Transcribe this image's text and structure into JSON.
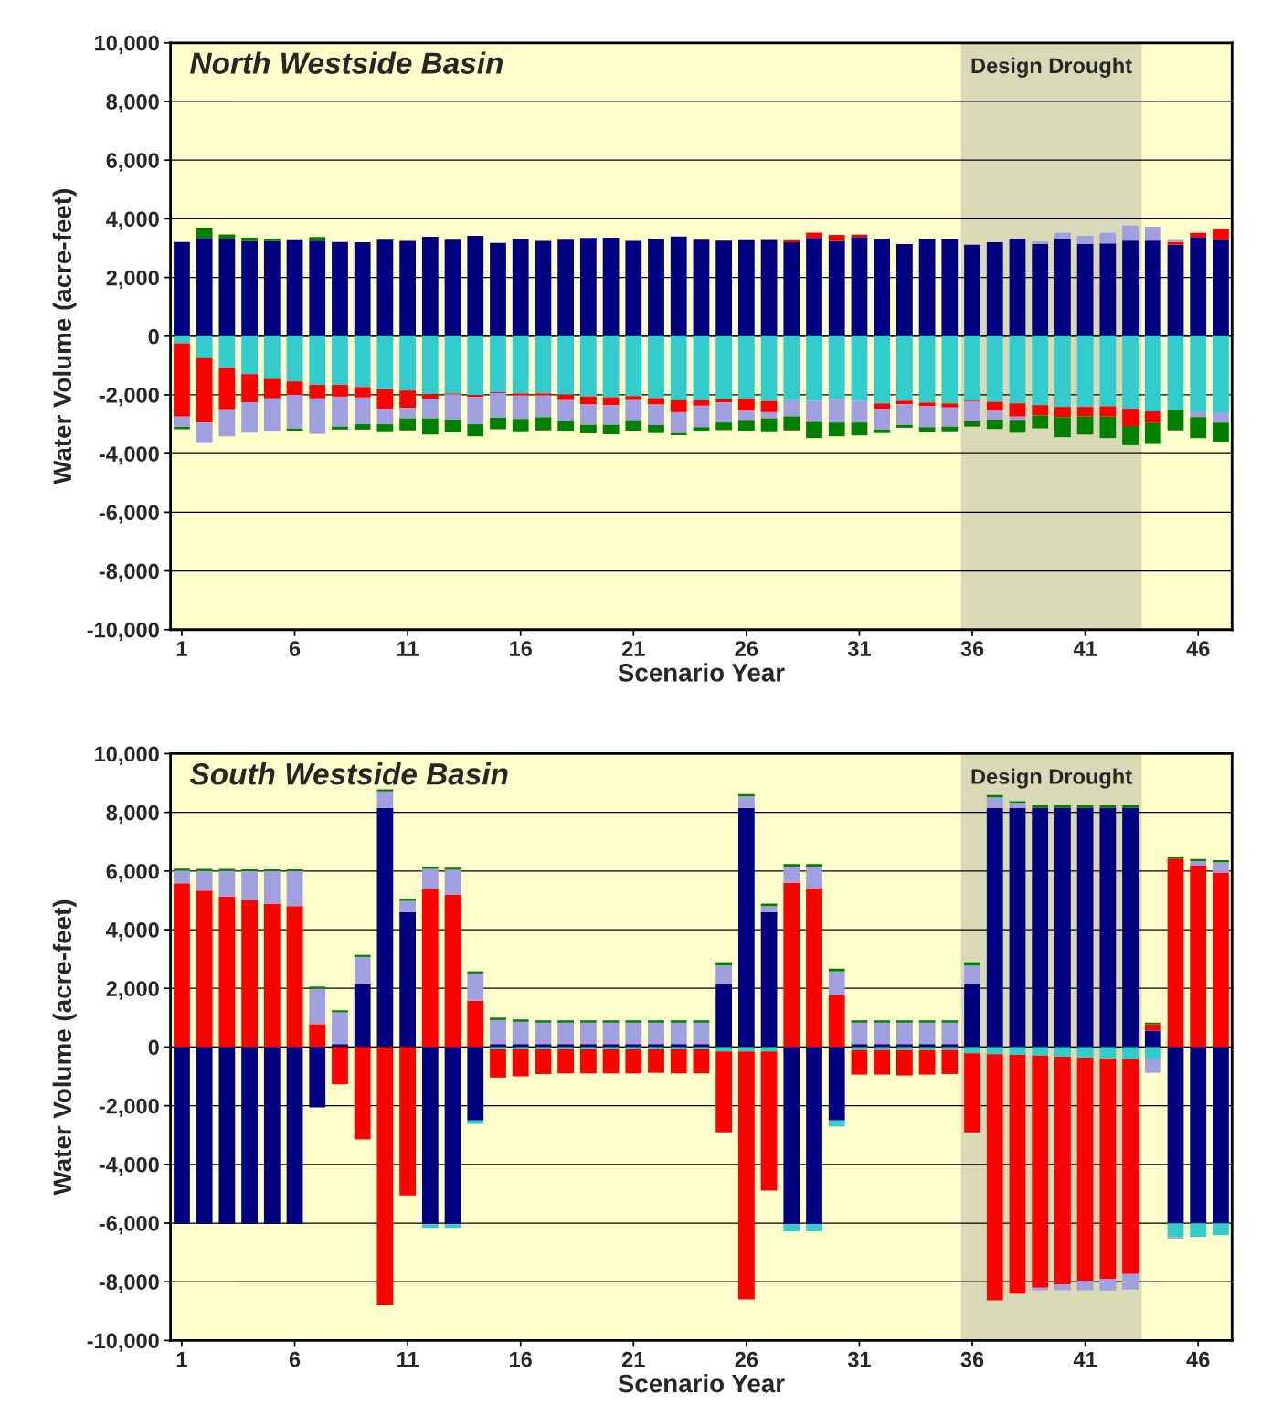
{
  "chart_data": [
    {
      "type": "bar",
      "title": "North Westside Basin",
      "xlabel": "Scenario Year",
      "ylabel": "Water Volume (acre-feet)",
      "stacked": true,
      "grid": "y",
      "x": [
        1,
        2,
        3,
        4,
        5,
        6,
        7,
        8,
        9,
        10,
        11,
        12,
        13,
        14,
        15,
        16,
        17,
        18,
        19,
        20,
        21,
        22,
        23,
        24,
        25,
        26,
        27,
        28,
        29,
        30,
        31,
        32,
        33,
        34,
        35,
        36,
        37,
        38,
        39,
        40,
        41,
        42,
        43,
        44,
        45,
        46,
        47
      ],
      "xlim": [
        0.5,
        47.5
      ],
      "xticks": [
        1,
        6,
        11,
        16,
        21,
        26,
        31,
        36,
        41,
        46
      ],
      "ylim": [
        -10000,
        10000
      ],
      "yticks": [
        {
          "value": -10000,
          "label": "-10,000"
        },
        {
          "value": -8000,
          "label": "-8,000"
        },
        {
          "value": -6000,
          "label": "-6,000"
        },
        {
          "value": -4000,
          "label": "-4,000"
        },
        {
          "value": -2000,
          "label": "-2,000"
        },
        0,
        {
          "value": 2000,
          "label": "2,000"
        },
        {
          "value": 4000,
          "label": "4,000"
        },
        {
          "value": 6000,
          "label": "6,000"
        },
        {
          "value": 8000,
          "label": "8,000"
        },
        {
          "value": 10000,
          "label": "10,000"
        }
      ],
      "bands": [
        {
          "axis": "x",
          "from": 35.5,
          "to": 43.5,
          "label": "Design Drought",
          "color": "#d2d2b0"
        }
      ],
      "series": [
        {
          "color": "#000080",
          "values": [
            3210,
            3350,
            3320,
            3240,
            3240,
            3270,
            3260,
            3210,
            3200,
            3290,
            3250,
            3390,
            3290,
            3420,
            3180,
            3310,
            3250,
            3290,
            3350,
            3360,
            3250,
            3320,
            3400,
            3290,
            3260,
            3270,
            3280,
            3200,
            3350,
            3240,
            3380,
            3330,
            3140,
            3320,
            3320,
            3120,
            3200,
            3330,
            3150,
            3320,
            3140,
            3160,
            3260,
            3260,
            3120,
            3380,
            3290
          ]
        },
        {
          "color": "#33cccc",
          "values": [
            -240,
            -740,
            -1090,
            -1290,
            -1450,
            -1540,
            -1660,
            -1660,
            -1730,
            -1810,
            -1850,
            -1980,
            -1950,
            -2000,
            -1910,
            -1950,
            -1950,
            -1990,
            -2050,
            -2080,
            -2040,
            -2110,
            -2180,
            -2180,
            -2150,
            -2140,
            -2210,
            -2180,
            -2200,
            -2140,
            -2200,
            -2290,
            -2200,
            -2260,
            -2290,
            -2200,
            -2240,
            -2290,
            -2350,
            -2410,
            -2410,
            -2390,
            -2470,
            -2560,
            -2510,
            -2560,
            -2590
          ]
        },
        {
          "color": "#ff0000",
          "values": [
            0,
            0,
            0,
            0,
            0,
            0,
            0,
            0,
            0,
            0,
            0,
            0,
            0,
            0,
            0,
            0,
            0,
            0,
            0,
            0,
            0,
            0,
            0,
            0,
            0,
            0,
            0,
            70,
            180,
            210,
            80,
            0,
            0,
            0,
            0,
            0,
            0,
            0,
            0,
            0,
            0,
            0,
            0,
            0,
            90,
            140,
            380
          ]
        },
        {
          "color": "#ff0000",
          "values": [
            -2500,
            -2200,
            -1400,
            -960,
            -670,
            -460,
            -460,
            -400,
            -360,
            -660,
            -600,
            -150,
            -30,
            -70,
            -30,
            -70,
            -70,
            -190,
            -280,
            -270,
            -140,
            -220,
            -410,
            -190,
            -110,
            -390,
            -380,
            0,
            0,
            0,
            0,
            -180,
            -120,
            -130,
            -140,
            -30,
            -290,
            -450,
            -350,
            -350,
            -320,
            -350,
            -590,
            -400,
            0,
            0,
            0
          ]
        },
        {
          "color": "#a0a0e0",
          "values": [
            0,
            0,
            0,
            0,
            0,
            0,
            0,
            0,
            0,
            0,
            0,
            0,
            0,
            0,
            0,
            0,
            0,
            0,
            0,
            0,
            0,
            0,
            0,
            0,
            0,
            0,
            0,
            0,
            0,
            0,
            0,
            0,
            0,
            0,
            0,
            0,
            0,
            0,
            80,
            200,
            280,
            360,
            510,
            470,
            70,
            0,
            0
          ]
        },
        {
          "color": "#a0a0e0",
          "values": [
            -350,
            -700,
            -920,
            -1040,
            -1130,
            -1150,
            -1210,
            -1020,
            -910,
            -530,
            -350,
            -670,
            -860,
            -930,
            -840,
            -800,
            -740,
            -720,
            -690,
            -670,
            -710,
            -700,
            -710,
            -730,
            -680,
            -350,
            -210,
            -550,
            -720,
            -800,
            -740,
            -710,
            -710,
            -710,
            -650,
            -670,
            -320,
            -140,
            0,
            0,
            0,
            0,
            0,
            0,
            0,
            -200,
            -350
          ]
        },
        {
          "color": "#008000",
          "values": [
            0,
            350,
            150,
            120,
            80,
            0,
            120,
            0,
            0,
            0,
            0,
            0,
            0,
            0,
            0,
            0,
            0,
            0,
            0,
            0,
            0,
            0,
            0,
            0,
            0,
            0,
            0,
            0,
            0,
            0,
            0,
            0,
            0,
            0,
            0,
            0,
            0,
            0,
            0,
            0,
            0,
            0,
            0,
            0,
            0,
            0,
            0
          ]
        },
        {
          "color": "#008000",
          "values": [
            -80,
            0,
            0,
            0,
            0,
            -80,
            0,
            -100,
            -180,
            -270,
            -410,
            -550,
            -440,
            -410,
            -390,
            -450,
            -450,
            -350,
            -290,
            -320,
            -330,
            -270,
            -70,
            -150,
            -260,
            -350,
            -470,
            -480,
            -550,
            -470,
            -440,
            -120,
            -90,
            -180,
            -190,
            -180,
            -310,
            -410,
            -440,
            -680,
            -620,
            -730,
            -650,
            -710,
            -700,
            -710,
            -670
          ]
        }
      ]
    },
    {
      "type": "bar",
      "title": "South Westside Basin",
      "xlabel": "Scenario Year",
      "ylabel": "Water Volume (acre-feet)",
      "stacked": true,
      "grid": "y",
      "x": [
        1,
        2,
        3,
        4,
        5,
        6,
        7,
        8,
        9,
        10,
        11,
        12,
        13,
        14,
        15,
        16,
        17,
        18,
        19,
        20,
        21,
        22,
        23,
        24,
        25,
        26,
        27,
        28,
        29,
        30,
        31,
        32,
        33,
        34,
        35,
        36,
        37,
        38,
        39,
        40,
        41,
        42,
        43,
        44,
        45,
        46,
        47
      ],
      "xlim": [
        0.5,
        47.5
      ],
      "xticks": [
        1,
        6,
        11,
        16,
        21,
        26,
        31,
        36,
        41,
        46
      ],
      "ylim": [
        -10000,
        10000
      ],
      "yticks": [
        {
          "value": -10000,
          "label": "-10,000"
        },
        {
          "value": -8000,
          "label": "-8,000"
        },
        {
          "value": -6000,
          "label": "-6,000"
        },
        {
          "value": -4000,
          "label": "-4,000"
        },
        {
          "value": -2000,
          "label": "-2,000"
        },
        0,
        {
          "value": 2000,
          "label": "2,000"
        },
        {
          "value": 4000,
          "label": "4,000"
        },
        {
          "value": 6000,
          "label": "6,000"
        },
        {
          "value": 8000,
          "label": "8,000"
        },
        {
          "value": 10000,
          "label": "10,000"
        }
      ],
      "bands": [
        {
          "axis": "x",
          "from": 35.5,
          "to": 43.5,
          "label": "Design Drought",
          "color": "#d2d2b0"
        }
      ],
      "series": [
        {
          "color": "#000080",
          "values": [
            -6030,
            -6030,
            -6030,
            -6030,
            -6030,
            -6030,
            -2060,
            100,
            2130,
            8150,
            4600,
            -6040,
            -6040,
            -2500,
            100,
            100,
            100,
            100,
            100,
            100,
            100,
            100,
            100,
            100,
            2130,
            8150,
            4600,
            -6040,
            -6040,
            -2500,
            100,
            100,
            100,
            100,
            100,
            2130,
            8150,
            8150,
            8150,
            8150,
            8150,
            8150,
            8150,
            560,
            -6010,
            -6010,
            -6010
          ]
        },
        {
          "color": "#33cccc",
          "values": [
            0,
            0,
            0,
            0,
            0,
            0,
            0,
            0,
            0,
            0,
            0,
            -120,
            -120,
            -120,
            -80,
            -80,
            -80,
            -80,
            -80,
            -80,
            -80,
            -80,
            -80,
            -80,
            -150,
            -150,
            -150,
            -240,
            -240,
            -210,
            -100,
            -100,
            -100,
            -100,
            -100,
            -210,
            -240,
            -270,
            -290,
            -330,
            -360,
            -390,
            -410,
            -390,
            -470,
            -460,
            -400
          ]
        },
        {
          "color": "#ff0000",
          "values": [
            5580,
            5330,
            5130,
            5000,
            4880,
            4800,
            780,
            0,
            0,
            0,
            0,
            5390,
            5190,
            1580,
            0,
            0,
            0,
            0,
            0,
            0,
            0,
            0,
            0,
            0,
            0,
            0,
            0,
            5600,
            5400,
            1780,
            0,
            0,
            0,
            0,
            0,
            0,
            0,
            0,
            0,
            0,
            0,
            0,
            0,
            210,
            6420,
            6180,
            5950
          ]
        },
        {
          "color": "#ff0000",
          "values": [
            0,
            0,
            0,
            0,
            0,
            0,
            0,
            -1270,
            -3150,
            -8800,
            -5060,
            0,
            0,
            0,
            -960,
            -920,
            -840,
            -820,
            -820,
            -820,
            -820,
            -800,
            -820,
            -820,
            -2760,
            -8450,
            -4740,
            0,
            0,
            0,
            -840,
            -840,
            -870,
            -840,
            -820,
            -2700,
            -8390,
            -8140,
            -7910,
            -7760,
            -7610,
            -7510,
            -7330,
            0,
            0,
            0,
            0
          ]
        },
        {
          "color": "#a0a0e0",
          "values": [
            440,
            680,
            880,
            1000,
            1120,
            1200,
            1210,
            1080,
            940,
            560,
            380,
            680,
            850,
            930,
            820,
            760,
            730,
            730,
            730,
            730,
            730,
            730,
            730,
            730,
            650,
            390,
            200,
            550,
            750,
            800,
            730,
            730,
            730,
            730,
            730,
            650,
            360,
            150,
            0,
            0,
            0,
            0,
            0,
            0,
            0,
            160,
            350
          ]
        },
        {
          "color": "#a0a0e0",
          "values": [
            0,
            0,
            0,
            0,
            0,
            0,
            0,
            0,
            0,
            0,
            0,
            0,
            0,
            0,
            0,
            0,
            0,
            0,
            0,
            0,
            0,
            0,
            0,
            0,
            0,
            0,
            0,
            0,
            0,
            0,
            0,
            0,
            0,
            0,
            0,
            0,
            0,
            0,
            -90,
            -200,
            -320,
            -400,
            -530,
            -490,
            -50,
            0,
            0
          ]
        },
        {
          "color": "#008000",
          "values": [
            60,
            60,
            60,
            60,
            60,
            60,
            70,
            70,
            70,
            70,
            70,
            70,
            70,
            70,
            80,
            80,
            80,
            80,
            80,
            80,
            80,
            80,
            80,
            80,
            110,
            80,
            90,
            90,
            90,
            90,
            80,
            80,
            80,
            80,
            80,
            110,
            80,
            80,
            90,
            90,
            90,
            90,
            90,
            60,
            70,
            70,
            70
          ]
        }
      ]
    }
  ]
}
